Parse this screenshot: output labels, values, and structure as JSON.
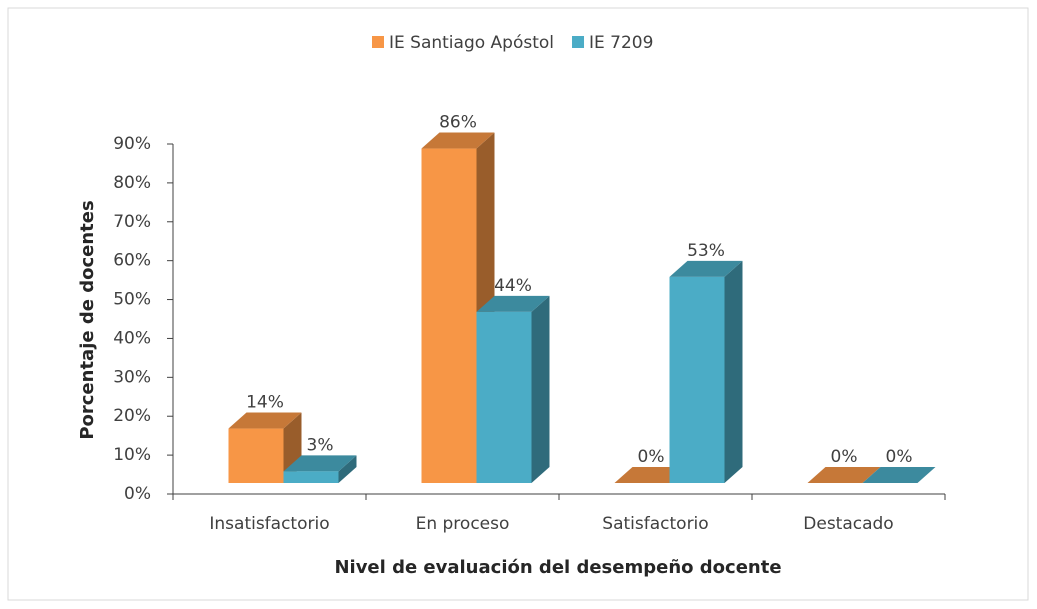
{
  "chart_data": {
    "type": "bar3d",
    "categories": [
      "Insatisfactorio",
      "En proceso",
      "Satisfactorio",
      "Destacado"
    ],
    "series": [
      {
        "name": "IE Santiago Apóstol",
        "color": "#f79646",
        "values": [
          14,
          86,
          0,
          0
        ],
        "value_labels": [
          "14%",
          "86%",
          "0%",
          "0%"
        ]
      },
      {
        "name": "IE 7209",
        "color": "#4bacc6",
        "values": [
          3,
          44,
          53,
          0
        ],
        "value_labels": [
          "3%",
          "44%",
          "53%",
          "0%"
        ]
      }
    ],
    "xlabel": "Nivel de evaluación del desempeño docente",
    "ylabel": "Porcentaje de docentes",
    "ylim": [
      0,
      90
    ],
    "yticks": [
      {
        "value": 0,
        "label": "0%"
      },
      {
        "value": 10,
        "label": "10%"
      },
      {
        "value": 20,
        "label": "20%"
      },
      {
        "value": 30,
        "label": "30%"
      },
      {
        "value": 40,
        "label": "40%"
      },
      {
        "value": 50,
        "label": "50%"
      },
      {
        "value": 60,
        "label": "60%"
      },
      {
        "value": 70,
        "label": "70%"
      },
      {
        "value": 80,
        "label": "80%"
      },
      {
        "value": 90,
        "label": "90%"
      }
    ],
    "legend": "top"
  }
}
